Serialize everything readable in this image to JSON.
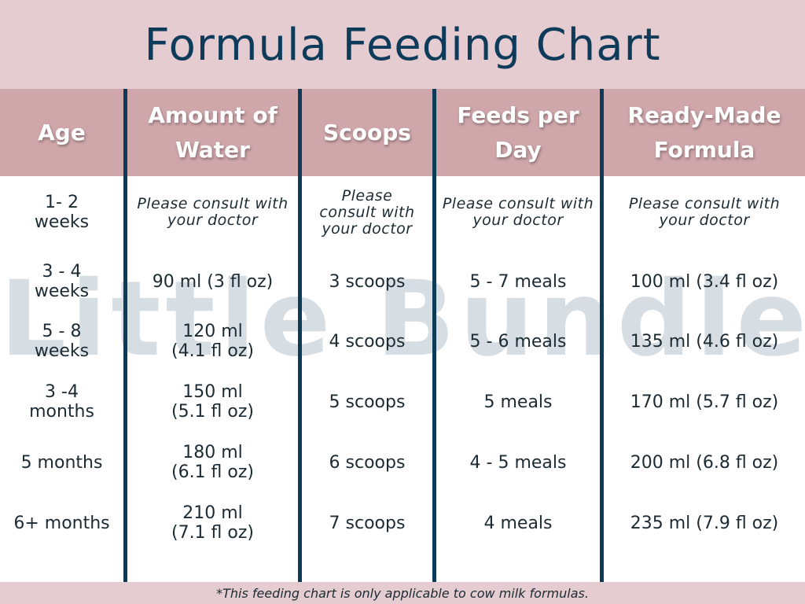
{
  "title": "Formula Feeding Chart",
  "watermark": "Little Bundle",
  "footnote": "*This feeding chart is only applicable to cow milk formulas.",
  "headers": [
    "Age",
    "Amount of\nWater",
    "Scoops",
    "Feeds per\nDay",
    "Ready-Made\nFormula"
  ],
  "rows": [
    [
      "1- 2\nweeks",
      "Please consult with\nyour doctor",
      "Please\nconsult with\nyour doctor",
      "Please consult with\nyour doctor",
      "Please consult with\nyour doctor"
    ],
    [
      "3 - 4\nweeks",
      "90 ml (3 fl oz)",
      "3 scoops",
      "5 - 7 meals",
      "100 ml (3.4 fl oz)"
    ],
    [
      "5 - 8\nweeks",
      "120 ml\n(4.1 fl oz)",
      "4 scoops",
      "5 - 6 meals",
      "135 ml (4.6 fl oz)"
    ],
    [
      "3 -4\nmonths",
      "150 ml\n(5.1 fl oz)",
      "5 scoops",
      "5 meals",
      "170 ml (5.7 fl oz)"
    ],
    [
      "5 months",
      "180 ml\n(6.1 fl oz)",
      "6 scoops",
      "4 - 5 meals",
      "200 ml (6.8 fl oz)"
    ],
    [
      "6+ months",
      "210 ml\n(7.1 fl oz)",
      "7 scoops",
      "4 meals",
      "235 ml (7.9 fl oz)"
    ]
  ]
}
